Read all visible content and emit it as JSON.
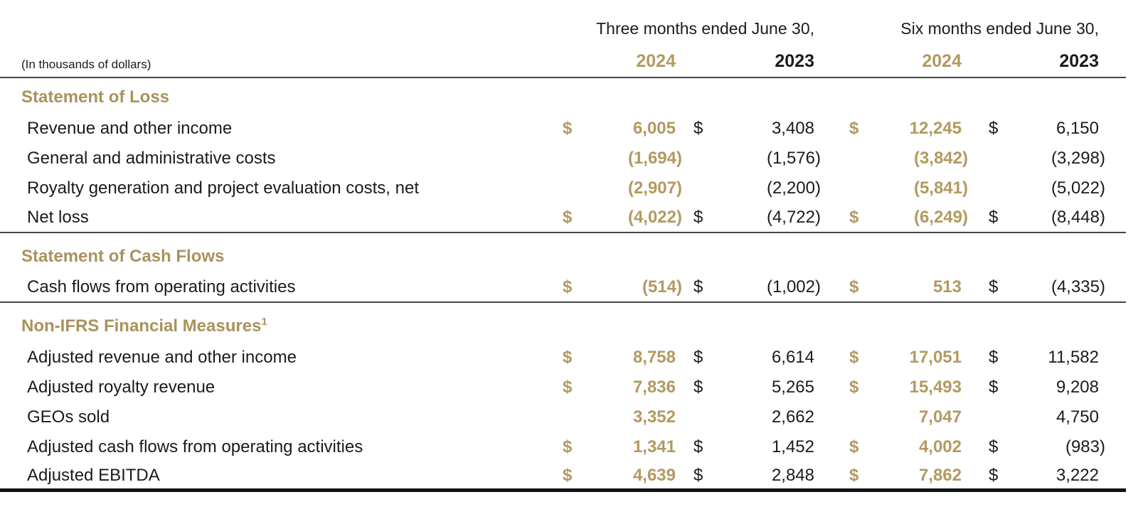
{
  "units_label": "(In thousands of dollars)",
  "currency_symbol": "$",
  "header": {
    "three_months_label": "Three months ended June 30,",
    "six_months_label": "Six months ended June 30,",
    "three_months_years": [
      "2024",
      "2023"
    ],
    "six_months_years": [
      "2024",
      "2023"
    ]
  },
  "colors": {
    "gold": "#B29A60",
    "section_title_gold": "#A9935D",
    "text": "#1B1B1B",
    "rule": "#454545",
    "thick_rule": "#101010"
  },
  "sections": [
    {
      "title": "Statement of Loss",
      "sup": "",
      "rows": [
        {
          "label": "Revenue and other income",
          "dollar": true,
          "values": [
            "6,005",
            "3,408",
            "12,245",
            "6,150"
          ]
        },
        {
          "label": "General and administrative costs",
          "dollar": false,
          "values": [
            "(1,694)",
            "(1,576)",
            "(3,842)",
            "(3,298)"
          ]
        },
        {
          "label": "Royalty generation and project evaluation costs, net",
          "dollar": false,
          "values": [
            "(2,907)",
            "(2,200)",
            "(5,841)",
            "(5,022)"
          ]
        },
        {
          "label": "Net loss",
          "dollar": true,
          "values": [
            "(4,022)",
            "(4,722)",
            "(6,249)",
            "(8,448)"
          ]
        }
      ]
    },
    {
      "title": "Statement of Cash Flows",
      "sup": "",
      "rows": [
        {
          "label": "Cash flows from operating activities",
          "dollar": true,
          "values": [
            "(514)",
            "(1,002)",
            "513",
            "(4,335)"
          ]
        }
      ]
    },
    {
      "title": "Non-IFRS Financial Measures",
      "sup": "1",
      "rows": [
        {
          "label": "Adjusted revenue and other income",
          "dollar": true,
          "values": [
            "8,758",
            "6,614",
            "17,051",
            "11,582"
          ]
        },
        {
          "label": "Adjusted royalty revenue",
          "dollar": true,
          "values": [
            "7,836",
            "5,265",
            "15,493",
            "9,208"
          ]
        },
        {
          "label": "GEOs sold",
          "dollar": false,
          "values": [
            "3,352",
            "2,662",
            "7,047",
            "4,750"
          ]
        },
        {
          "label": "Adjusted cash flows from operating activities",
          "dollar": true,
          "values": [
            "1,341",
            "1,452",
            "4,002",
            "(983)"
          ]
        },
        {
          "label": "Adjusted EBITDA",
          "dollar": true,
          "values": [
            "4,639",
            "2,848",
            "7,862",
            "3,222"
          ]
        }
      ]
    }
  ]
}
